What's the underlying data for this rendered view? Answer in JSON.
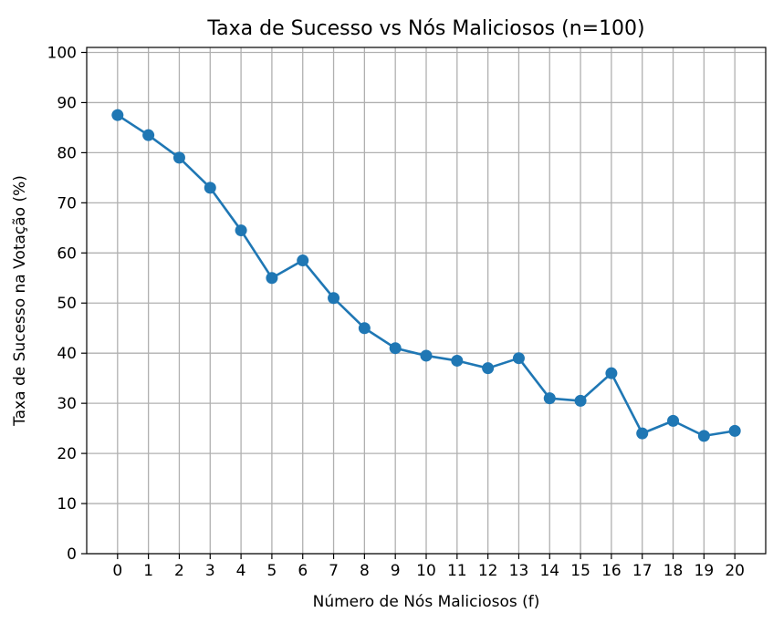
{
  "chart_data": {
    "type": "line",
    "title": "Taxa de Sucesso vs Nós Maliciosos (n=100)",
    "xlabel": "Número de Nós Maliciosos (f)",
    "ylabel": "Taxa de Sucesso na Votação (%)",
    "x": [
      0,
      1,
      2,
      3,
      4,
      5,
      6,
      7,
      8,
      9,
      10,
      11,
      12,
      13,
      14,
      15,
      16,
      17,
      18,
      19,
      20
    ],
    "series": [
      {
        "values": [
          87.5,
          83.5,
          79,
          73,
          64.5,
          55,
          58.5,
          51,
          45,
          41,
          39.5,
          38.5,
          37,
          39,
          31,
          30.5,
          36,
          24,
          26.5,
          23.5,
          24.5
        ],
        "color": "#1f77b4",
        "marker": "circle"
      }
    ],
    "xlim": [
      -1,
      21
    ],
    "ylim": [
      0,
      101
    ],
    "xticks": [
      "0",
      "1",
      "2",
      "3",
      "4",
      "5",
      "6",
      "7",
      "8",
      "9",
      "10",
      "11",
      "12",
      "13",
      "14",
      "15",
      "16",
      "17",
      "18",
      "19",
      "20"
    ],
    "yticks": [
      "0",
      "10",
      "20",
      "30",
      "40",
      "50",
      "60",
      "70",
      "80",
      "90",
      "100"
    ],
    "grid": true,
    "grid_color": "#b0b0b0",
    "legend": "none"
  }
}
